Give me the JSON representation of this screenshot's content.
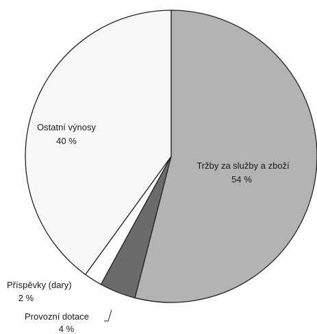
{
  "chart_data": {
    "type": "pie",
    "slices": [
      {
        "label": "Tržby za služby a zboží",
        "value": 54,
        "value_text": "54 %",
        "color": "#b3b3b3"
      },
      {
        "label": "Provozní dotace",
        "value": 4,
        "value_text": "4 %",
        "color": "#6b6b6b"
      },
      {
        "label": "Příspěvky (dary)",
        "value": 2,
        "value_text": "2 %",
        "color": "#ffffff"
      },
      {
        "label": "Ostatní výnosy",
        "value": 40,
        "value_text": "40 %",
        "color": "#f7f7f5"
      }
    ],
    "start": "12 o'clock",
    "direction": "clockwise",
    "legend": "none"
  }
}
